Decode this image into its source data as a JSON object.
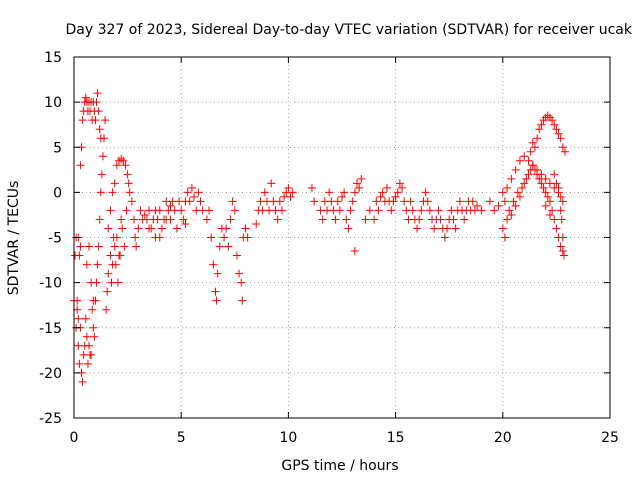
{
  "chart_data": {
    "type": "scatter",
    "title": "Day 327 of 2023, Sidereal Day-to-day VTEC variation (SDTVAR) for receiver ucak",
    "xlabel": "GPS time / hours",
    "ylabel": "SDTVAR / TECUs",
    "xlim": [
      0,
      25
    ],
    "ylim": [
      -25,
      15
    ],
    "xticks": [
      0,
      5,
      10,
      15,
      20,
      25
    ],
    "yticks": [
      -25,
      -20,
      -15,
      -10,
      -5,
      0,
      5,
      10,
      15
    ],
    "grid": true,
    "marker": "plus",
    "color": "#ff0000",
    "series": [
      {
        "name": "SDTVAR",
        "points": [
          [
            0.0,
            -12
          ],
          [
            0.05,
            -7
          ],
          [
            0.1,
            -5
          ],
          [
            0.15,
            -13
          ],
          [
            0.2,
            -17
          ],
          [
            0.25,
            -19
          ],
          [
            0.3,
            -15
          ],
          [
            0.35,
            -20
          ],
          [
            0.4,
            -21
          ],
          [
            0.45,
            -18
          ],
          [
            0.5,
            -17
          ],
          [
            0.55,
            -14
          ],
          [
            0.6,
            -16
          ],
          [
            0.65,
            -19
          ],
          [
            0.7,
            -17
          ],
          [
            0.75,
            -18
          ],
          [
            0.8,
            -18
          ],
          [
            0.85,
            -13
          ],
          [
            0.9,
            -15
          ],
          [
            0.95,
            -16
          ],
          [
            1.0,
            -12
          ],
          [
            1.05,
            -10
          ],
          [
            1.1,
            -8
          ],
          [
            1.15,
            -6
          ],
          [
            1.2,
            -3
          ],
          [
            1.25,
            0
          ],
          [
            1.3,
            2
          ],
          [
            1.35,
            4
          ],
          [
            1.4,
            6
          ],
          [
            1.45,
            8
          ],
          [
            0.3,
            3
          ],
          [
            0.35,
            5
          ],
          [
            0.4,
            8
          ],
          [
            0.45,
            9
          ],
          [
            0.5,
            10
          ],
          [
            0.55,
            10.5
          ],
          [
            0.6,
            10
          ],
          [
            0.65,
            9
          ],
          [
            0.7,
            10
          ],
          [
            0.75,
            9
          ],
          [
            0.8,
            10
          ],
          [
            0.85,
            8
          ],
          [
            0.9,
            10
          ],
          [
            0.95,
            9
          ],
          [
            1.0,
            8
          ],
          [
            1.05,
            10
          ],
          [
            1.1,
            11
          ],
          [
            1.15,
            9
          ],
          [
            1.2,
            7
          ],
          [
            1.25,
            6
          ],
          [
            0.2,
            -5
          ],
          [
            0.25,
            -7
          ],
          [
            0.3,
            -6
          ],
          [
            0.1,
            -15
          ],
          [
            0.15,
            -12
          ],
          [
            0.2,
            -14
          ],
          [
            0.6,
            -8
          ],
          [
            0.7,
            -6
          ],
          [
            0.8,
            -10
          ],
          [
            0.9,
            -12
          ],
          [
            1.5,
            -13
          ],
          [
            1.55,
            -11
          ],
          [
            1.6,
            -9
          ],
          [
            1.7,
            -7
          ],
          [
            1.75,
            -10
          ],
          [
            1.8,
            -8
          ],
          [
            1.9,
            -6
          ],
          [
            2.0,
            -5
          ],
          [
            2.1,
            -7
          ],
          [
            2.2,
            -3
          ],
          [
            1.6,
            -4
          ],
          [
            1.7,
            -2
          ],
          [
            1.8,
            0
          ],
          [
            1.9,
            1
          ],
          [
            2.0,
            3
          ],
          [
            2.1,
            3.5
          ],
          [
            2.2,
            3.7
          ],
          [
            2.3,
            3.5
          ],
          [
            2.4,
            3
          ],
          [
            2.5,
            2
          ],
          [
            1.85,
            -5
          ],
          [
            1.95,
            -8
          ],
          [
            2.05,
            -10
          ],
          [
            2.15,
            -7
          ],
          [
            2.25,
            -4
          ],
          [
            2.35,
            -6
          ],
          [
            2.45,
            -2
          ],
          [
            2.55,
            1
          ],
          [
            2.6,
            0
          ],
          [
            2.7,
            -1
          ],
          [
            2.8,
            -3
          ],
          [
            2.85,
            -5
          ],
          [
            2.9,
            -6
          ],
          [
            3.0,
            -4
          ],
          [
            3.1,
            -2
          ],
          [
            3.2,
            -3
          ],
          [
            3.3,
            -2.5
          ],
          [
            3.4,
            -3
          ],
          [
            3.5,
            -2
          ],
          [
            3.6,
            -4
          ],
          [
            3.7,
            -3
          ],
          [
            3.8,
            -5
          ],
          [
            3.9,
            -3
          ],
          [
            4.0,
            -2
          ],
          [
            4.1,
            -4
          ],
          [
            4.2,
            -3
          ],
          [
            4.3,
            -1
          ],
          [
            4.4,
            -2
          ],
          [
            4.5,
            -3
          ],
          [
            4.6,
            -1
          ],
          [
            4.7,
            -2
          ],
          [
            4.8,
            -4
          ],
          [
            4.9,
            -1
          ],
          [
            5.0,
            -2
          ],
          [
            5.1,
            -3
          ],
          [
            5.2,
            -1
          ],
          [
            5.3,
            0
          ],
          [
            5.4,
            -1
          ],
          [
            5.5,
            0.5
          ],
          [
            5.6,
            -0.5
          ],
          [
            5.7,
            -2
          ],
          [
            5.8,
            0
          ],
          [
            5.9,
            -1
          ],
          [
            6.0,
            -2
          ],
          [
            3.5,
            -4
          ],
          [
            3.8,
            -2
          ],
          [
            4.0,
            -5
          ],
          [
            4.3,
            -3
          ],
          [
            4.5,
            -1.5
          ],
          [
            5.2,
            -3.5
          ],
          [
            6.2,
            -3
          ],
          [
            6.3,
            -2
          ],
          [
            6.4,
            -5
          ],
          [
            6.5,
            -8
          ],
          [
            6.6,
            -11
          ],
          [
            6.65,
            -12
          ],
          [
            6.7,
            -9
          ],
          [
            6.8,
            -6
          ],
          [
            6.9,
            -4
          ],
          [
            7.0,
            -5
          ],
          [
            7.1,
            -4
          ],
          [
            7.2,
            -6
          ],
          [
            7.3,
            -3
          ],
          [
            7.4,
            -1
          ],
          [
            7.5,
            -2
          ],
          [
            7.6,
            -7
          ],
          [
            7.7,
            -9
          ],
          [
            7.8,
            -10
          ],
          [
            7.85,
            -12
          ],
          [
            7.9,
            -5
          ],
          [
            8.0,
            -4
          ],
          [
            8.1,
            -5
          ],
          [
            8.5,
            -3.5
          ],
          [
            8.6,
            -2
          ],
          [
            8.7,
            -1
          ],
          [
            8.8,
            -2
          ],
          [
            8.9,
            0
          ],
          [
            9.0,
            -1
          ],
          [
            9.1,
            -2
          ],
          [
            9.2,
            1
          ],
          [
            9.3,
            -1
          ],
          [
            9.4,
            -2
          ],
          [
            9.5,
            -3
          ],
          [
            9.6,
            -1
          ],
          [
            9.7,
            -2
          ],
          [
            9.8,
            -0.5
          ],
          [
            9.9,
            0
          ],
          [
            10.0,
            0.5
          ],
          [
            10.1,
            -0.5
          ],
          [
            10.2,
            0
          ],
          [
            11.1,
            0.5
          ],
          [
            11.2,
            -1
          ],
          [
            11.5,
            -2
          ],
          [
            11.6,
            -3
          ],
          [
            11.7,
            -1
          ],
          [
            11.8,
            -2
          ],
          [
            11.9,
            0
          ],
          [
            12.0,
            -1
          ],
          [
            12.1,
            -2
          ],
          [
            12.2,
            -3
          ],
          [
            12.3,
            -1
          ],
          [
            12.4,
            -2
          ],
          [
            12.5,
            -0.5
          ],
          [
            12.6,
            0
          ],
          [
            12.7,
            -3
          ],
          [
            12.8,
            -4
          ],
          [
            12.9,
            -2
          ],
          [
            13.0,
            -1
          ],
          [
            13.1,
            0
          ],
          [
            13.2,
            1
          ],
          [
            13.3,
            0.5
          ],
          [
            13.4,
            1.5
          ],
          [
            13.1,
            -6.5
          ],
          [
            13.6,
            -3
          ],
          [
            13.8,
            -2
          ],
          [
            14.0,
            -3
          ],
          [
            14.1,
            -1
          ],
          [
            14.2,
            -2
          ],
          [
            14.3,
            -0.5
          ],
          [
            14.4,
            0
          ],
          [
            14.5,
            -1
          ],
          [
            14.6,
            0.5
          ],
          [
            14.7,
            -1
          ],
          [
            14.8,
            -2
          ],
          [
            14.9,
            -1
          ],
          [
            15.0,
            -0.5
          ],
          [
            15.1,
            0
          ],
          [
            15.2,
            1
          ],
          [
            15.3,
            0.5
          ],
          [
            15.4,
            -1
          ],
          [
            15.5,
            -2
          ],
          [
            15.6,
            -3
          ],
          [
            15.7,
            -1
          ],
          [
            15.8,
            -2
          ],
          [
            15.9,
            -3
          ],
          [
            16.0,
            -4
          ],
          [
            16.1,
            -3
          ],
          [
            16.2,
            -2
          ],
          [
            16.3,
            -1
          ],
          [
            16.4,
            0
          ],
          [
            16.5,
            -1
          ],
          [
            16.6,
            -2
          ],
          [
            16.7,
            -3
          ],
          [
            16.8,
            -4
          ],
          [
            16.9,
            -3
          ],
          [
            17.0,
            -2
          ],
          [
            17.1,
            -3
          ],
          [
            17.2,
            -4
          ],
          [
            17.3,
            -5
          ],
          [
            17.4,
            -4
          ],
          [
            17.5,
            -3
          ],
          [
            17.6,
            -2
          ],
          [
            17.7,
            -3
          ],
          [
            17.8,
            -4
          ],
          [
            17.9,
            -2
          ],
          [
            18.0,
            -1
          ],
          [
            18.1,
            -2
          ],
          [
            18.2,
            -3
          ],
          [
            18.3,
            -2
          ],
          [
            18.4,
            -1
          ],
          [
            18.5,
            -2
          ],
          [
            18.6,
            -1
          ],
          [
            18.7,
            -2
          ],
          [
            18.8,
            -1.5
          ],
          [
            19.0,
            -2
          ],
          [
            19.4,
            -1
          ],
          [
            19.6,
            -2
          ],
          [
            19.8,
            -1.5
          ],
          [
            20.0,
            0
          ],
          [
            20.1,
            -1
          ],
          [
            20.0,
            -4
          ],
          [
            20.1,
            -5
          ],
          [
            20.2,
            -3
          ],
          [
            20.3,
            -2
          ],
          [
            20.4,
            -2.5
          ],
          [
            20.5,
            -1
          ],
          [
            20.6,
            -1.5
          ],
          [
            20.7,
            0
          ],
          [
            20.8,
            -0.5
          ],
          [
            20.9,
            0.5
          ],
          [
            21.0,
            1
          ],
          [
            21.1,
            1.5
          ],
          [
            21.2,
            2
          ],
          [
            21.3,
            2.5
          ],
          [
            21.4,
            3
          ],
          [
            21.5,
            2.5
          ],
          [
            21.6,
            2
          ],
          [
            21.7,
            1.5
          ],
          [
            21.8,
            1
          ],
          [
            21.9,
            0.5
          ],
          [
            22.0,
            0
          ],
          [
            22.1,
            -0.5
          ],
          [
            22.2,
            -1
          ],
          [
            22.3,
            -2
          ],
          [
            22.4,
            -3
          ],
          [
            22.5,
            -4
          ],
          [
            22.6,
            -5
          ],
          [
            22.7,
            -6
          ],
          [
            22.8,
            -6.5
          ],
          [
            22.85,
            -7
          ],
          [
            20.2,
            0.5
          ],
          [
            20.4,
            1.5
          ],
          [
            20.6,
            2.5
          ],
          [
            20.8,
            3.5
          ],
          [
            21.0,
            4
          ],
          [
            21.2,
            3.5
          ],
          [
            21.4,
            3
          ],
          [
            21.6,
            2.5
          ],
          [
            21.8,
            2
          ],
          [
            22.0,
            1.5
          ],
          [
            22.2,
            1
          ],
          [
            22.4,
            0.5
          ],
          [
            22.6,
            0
          ],
          [
            22.7,
            -0.5
          ],
          [
            22.8,
            -1
          ],
          [
            22.75,
            -3
          ],
          [
            22.8,
            -5
          ],
          [
            21.5,
            5
          ],
          [
            21.6,
            6
          ],
          [
            21.7,
            7
          ],
          [
            21.8,
            7.5
          ],
          [
            21.9,
            8
          ],
          [
            22.0,
            8.3
          ],
          [
            22.1,
            8.5
          ],
          [
            22.2,
            8.3
          ],
          [
            22.3,
            8
          ],
          [
            22.4,
            7.5
          ],
          [
            22.5,
            7
          ],
          [
            22.6,
            6.5
          ],
          [
            22.7,
            6
          ],
          [
            22.8,
            5
          ],
          [
            22.9,
            4.5
          ],
          [
            21.4,
            5.5
          ],
          [
            21.3,
            4.5
          ],
          [
            22.0,
            -1.5
          ],
          [
            22.2,
            -2.5
          ],
          [
            22.4,
            2
          ],
          [
            22.5,
            1
          ],
          [
            22.6,
            0.5
          ],
          [
            22.7,
            -2
          ]
        ]
      }
    ]
  }
}
